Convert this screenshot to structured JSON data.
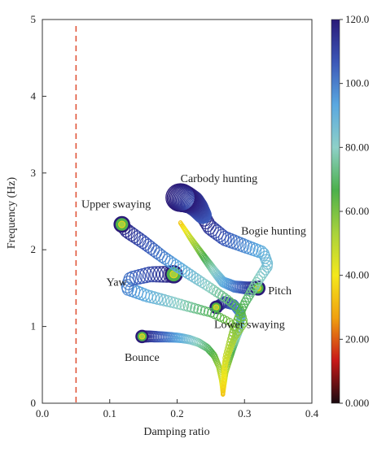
{
  "chart_data": {
    "type": "scatter",
    "title": "",
    "xlabel": "Damping ratio",
    "ylabel": "Frequency (Hz)",
    "xlim": [
      0.0,
      0.4
    ],
    "ylim": [
      0,
      5
    ],
    "xticks": [
      "0.0",
      "0.1",
      "0.2",
      "0.3",
      "0.4"
    ],
    "yticks": [
      "0",
      "1",
      "2",
      "3",
      "4",
      "5"
    ],
    "grid": false,
    "reference_line": {
      "x": 0.05,
      "style": "dashed",
      "color": "#e0563a"
    },
    "colorbar": {
      "min": 0,
      "max": 120,
      "labels": [
        "120.0",
        "100.0",
        "80.00",
        "60.00",
        "40.00",
        "20.00",
        "0.000"
      ],
      "colors": [
        "#1a0a10",
        "#c81818",
        "#f0a010",
        "#f4e81c",
        "#a8d23c",
        "#4cb04c",
        "#8ed0c8",
        "#5aa8e0",
        "#3c58b8",
        "#2a1a78"
      ]
    },
    "annotations": [
      {
        "text": "Carbody hunting",
        "x": 0.205,
        "y": 2.88
      },
      {
        "text": "Upper swaying",
        "x": 0.058,
        "y": 2.55
      },
      {
        "text": "Bogie hunting",
        "x": 0.295,
        "y": 2.2
      },
      {
        "text": "Yaw",
        "x": 0.095,
        "y": 1.53
      },
      {
        "text": "Pitch",
        "x": 0.335,
        "y": 1.42
      },
      {
        "text": "Lower swaying",
        "x": 0.255,
        "y": 0.98
      },
      {
        "text": "Bounce",
        "x": 0.122,
        "y": 0.55
      }
    ],
    "series": [
      {
        "mode": "Bounce",
        "points": [
          [
            0.268,
            0.12
          ],
          [
            0.266,
            0.3
          ],
          [
            0.262,
            0.48
          ],
          [
            0.255,
            0.62
          ],
          [
            0.245,
            0.72
          ],
          [
            0.232,
            0.79
          ],
          [
            0.218,
            0.83
          ],
          [
            0.205,
            0.85
          ],
          [
            0.19,
            0.86
          ],
          [
            0.175,
            0.865
          ],
          [
            0.16,
            0.87
          ],
          [
            0.148,
            0.87
          ]
        ]
      },
      {
        "mode": "Lower swaying",
        "points": [
          [
            0.268,
            0.12
          ],
          [
            0.272,
            0.4
          ],
          [
            0.282,
            0.7
          ],
          [
            0.292,
            0.95
          ],
          [
            0.295,
            1.15
          ],
          [
            0.285,
            1.28
          ],
          [
            0.27,
            1.32
          ],
          [
            0.258,
            1.25
          ]
        ]
      },
      {
        "mode": "Yaw",
        "points": [
          [
            0.268,
            0.12
          ],
          [
            0.27,
            0.45
          ],
          [
            0.28,
            0.75
          ],
          [
            0.288,
            0.92
          ],
          [
            0.28,
            1.05
          ],
          [
            0.25,
            1.18
          ],
          [
            0.2,
            1.3
          ],
          [
            0.155,
            1.4
          ],
          [
            0.125,
            1.5
          ],
          [
            0.13,
            1.62
          ],
          [
            0.16,
            1.68
          ],
          [
            0.195,
            1.68
          ]
        ]
      },
      {
        "mode": "Pitch",
        "points": [
          [
            0.205,
            2.35
          ],
          [
            0.22,
            2.15
          ],
          [
            0.24,
            1.9
          ],
          [
            0.255,
            1.72
          ],
          [
            0.268,
            1.58
          ],
          [
            0.285,
            1.52
          ],
          [
            0.305,
            1.5
          ],
          [
            0.32,
            1.5
          ]
        ]
      },
      {
        "mode": "Upper swaying",
        "points": [
          [
            0.268,
            0.12
          ],
          [
            0.27,
            0.5
          ],
          [
            0.285,
            0.85
          ],
          [
            0.3,
            1.05
          ],
          [
            0.295,
            1.2
          ],
          [
            0.275,
            1.35
          ],
          [
            0.25,
            1.5
          ],
          [
            0.215,
            1.7
          ],
          [
            0.18,
            1.9
          ],
          [
            0.15,
            2.1
          ],
          [
            0.125,
            2.25
          ],
          [
            0.118,
            2.33
          ]
        ]
      },
      {
        "mode": "Bogie hunting",
        "points": [
          [
            0.268,
            0.12
          ],
          [
            0.272,
            0.6
          ],
          [
            0.285,
            1.0
          ],
          [
            0.3,
            1.3
          ],
          [
            0.32,
            1.6
          ],
          [
            0.335,
            1.8
          ],
          [
            0.328,
            1.96
          ],
          [
            0.3,
            2.05
          ],
          [
            0.27,
            2.15
          ],
          [
            0.248,
            2.3
          ],
          [
            0.238,
            2.45
          ]
        ]
      },
      {
        "mode": "Carbody hunting",
        "points": [
          [
            0.238,
            2.45
          ],
          [
            0.23,
            2.55
          ],
          [
            0.222,
            2.62
          ],
          [
            0.212,
            2.66
          ],
          [
            0.205,
            2.68
          ]
        ]
      }
    ]
  }
}
